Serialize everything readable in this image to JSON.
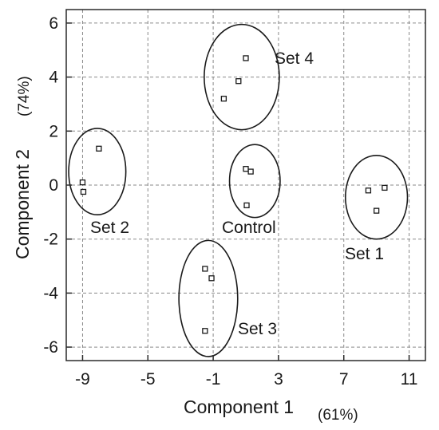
{
  "chart_data": {
    "type": "scatter",
    "xlabel": "Component 1",
    "xlabel_unit": "(61%)",
    "ylabel": "Component 2",
    "ylabel_unit": "(74%)",
    "xlim": [
      -10,
      12
    ],
    "ylim": [
      -6.5,
      6.5
    ],
    "x_ticks": [
      -9,
      -5,
      -1,
      3,
      7,
      11
    ],
    "y_ticks": [
      6,
      4,
      2,
      0,
      -2,
      -4,
      -6
    ],
    "x_tick_labels": [
      "-9",
      "-5",
      "-1",
      "3",
      "7",
      "11"
    ],
    "y_tick_labels": [
      "6",
      "4",
      "2",
      "0",
      "-2",
      "-4",
      "-6"
    ],
    "grid": true,
    "series": [
      {
        "name": "Set 1",
        "label": "Set 1",
        "points": [
          [
            8.5,
            -0.2
          ],
          [
            9.5,
            -0.1
          ],
          [
            9.0,
            -0.95
          ]
        ],
        "ellipse": {
          "cx": 9.0,
          "cy": -0.45,
          "rx": 1.9,
          "ry": 1.55
        }
      },
      {
        "name": "Set 2",
        "label": "Set 2",
        "points": [
          [
            -8.0,
            1.35
          ],
          [
            -9.0,
            0.1
          ],
          [
            -8.95,
            -0.25
          ]
        ],
        "ellipse": {
          "cx": -8.1,
          "cy": 0.5,
          "rx": 1.75,
          "ry": 1.6
        }
      },
      {
        "name": "Set 3",
        "label": "Set 3",
        "points": [
          [
            -1.5,
            -3.1
          ],
          [
            -1.1,
            -3.45
          ],
          [
            -1.5,
            -5.4
          ]
        ],
        "ellipse": {
          "cx": -1.3,
          "cy": -4.2,
          "rx": 1.8,
          "ry": 2.15
        }
      },
      {
        "name": "Set 4",
        "label": "Set 4",
        "points": [
          [
            1.0,
            4.7
          ],
          [
            0.55,
            3.85
          ],
          [
            -0.35,
            3.2
          ]
        ],
        "ellipse": {
          "cx": 0.75,
          "cy": 4.0,
          "rx": 2.3,
          "ry": 1.95
        }
      },
      {
        "name": "Control",
        "label": "Control",
        "points": [
          [
            1.0,
            0.6
          ],
          [
            1.3,
            0.5
          ],
          [
            1.05,
            -0.75
          ]
        ],
        "ellipse": {
          "cx": 1.55,
          "cy": 0.15,
          "rx": 1.55,
          "ry": 1.35
        }
      }
    ]
  }
}
